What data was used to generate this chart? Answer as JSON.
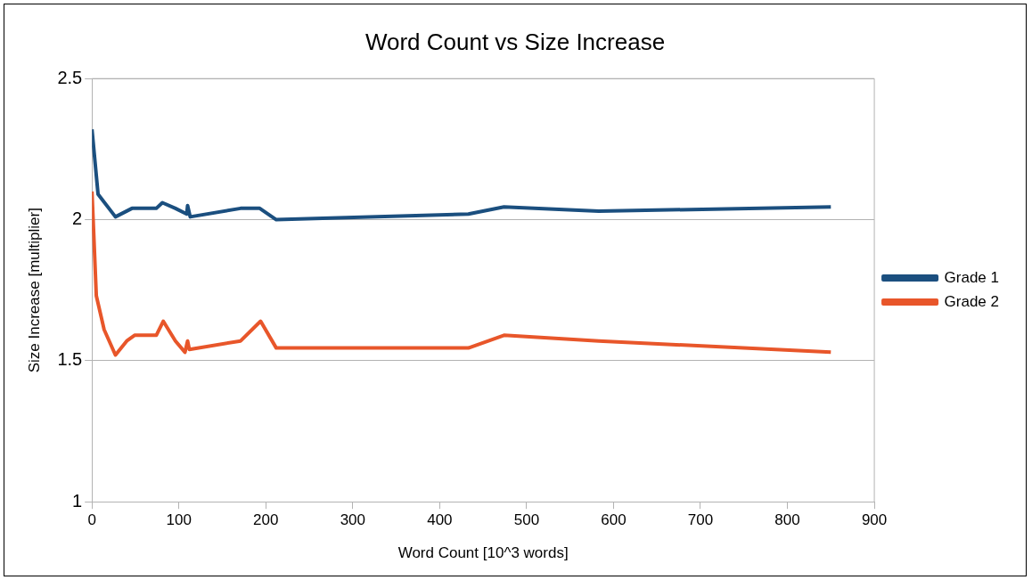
{
  "chart_data": {
    "type": "line",
    "title": "Word Count vs Size Increase",
    "xlabel": "Word Count [10^3 words]",
    "ylabel": "Size Increase [multiplier]",
    "xlim": [
      0,
      900
    ],
    "xticks": [
      0,
      100,
      200,
      300,
      400,
      500,
      600,
      700,
      800,
      900
    ],
    "ylim": [
      1,
      2.5
    ],
    "yticks": [
      1,
      1.5,
      2,
      2.5
    ],
    "grid": "y",
    "legend": "right",
    "marker": "none",
    "line_style": "solid",
    "series": [
      {
        "name": "Grade 1",
        "color": "#1b4f7f",
        "x": [
          0,
          7,
          27,
          46,
          74,
          81,
          96,
          109,
          110,
          113,
          171,
          193,
          212,
          433,
          474,
          583,
          850
        ],
        "values": [
          2.32,
          2.09,
          2.01,
          2.04,
          2.04,
          2.06,
          2.04,
          2.02,
          2.05,
          2.01,
          2.04,
          2.04,
          2.0,
          2.02,
          2.045,
          2.03,
          2.045
        ]
      },
      {
        "name": "Grade 2",
        "color": "#e8562a",
        "x": [
          0,
          5,
          14,
          27,
          40,
          49,
          74,
          82,
          96,
          107,
          110,
          112,
          171,
          194,
          212,
          433,
          474,
          583,
          850
        ],
        "values": [
          2.1,
          1.73,
          1.61,
          1.52,
          1.57,
          1.59,
          1.59,
          1.64,
          1.57,
          1.53,
          1.57,
          1.54,
          1.57,
          1.64,
          1.545,
          1.545,
          1.59,
          1.57,
          1.53
        ]
      }
    ]
  }
}
